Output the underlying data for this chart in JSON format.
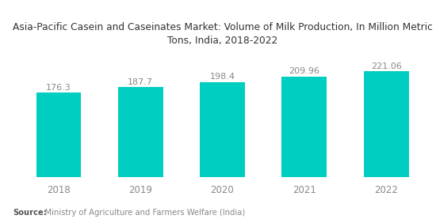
{
  "title_line1": "Asia-Pacific Casein and Caseinates Market: Volume of Milk Production, In Million Metric",
  "title_line2": "Tons, India, 2018-2022",
  "categories": [
    "2018",
    "2019",
    "2020",
    "2021",
    "2022"
  ],
  "values": [
    176.3,
    187.7,
    198.4,
    209.96,
    221.06
  ],
  "bar_color": "#00CEC0",
  "background_color": "#ffffff",
  "title_fontsize": 8.8,
  "label_fontsize": 8.5,
  "value_fontsize": 8.0,
  "source_bold": "Source:",
  "source_text": "   Ministry of Agriculture and Farmers Welfare (India)",
  "ylim_min": 0,
  "ylim_max": 260,
  "bar_width": 0.55
}
